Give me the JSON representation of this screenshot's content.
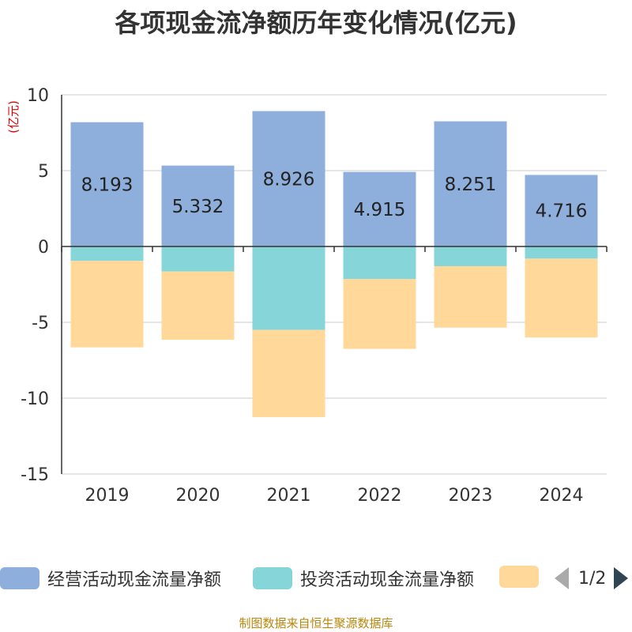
{
  "title": "各项现金流净额历年变化情况(亿元)",
  "source": "制图数据来自恒生聚源数据库",
  "chart_data": {
    "type": "bar",
    "stacked": true,
    "title": "各项现金流净额历年变化情况(亿元)",
    "ylabel": "(亿元)",
    "xlabel": "",
    "ylim": [
      -15,
      10
    ],
    "yticks": [
      10,
      5,
      0,
      -5,
      -10,
      -15
    ],
    "grid": true,
    "categories": [
      "2019",
      "2020",
      "2021",
      "2022",
      "2023",
      "2024"
    ],
    "series": [
      {
        "name": "经营活动现金流量净额",
        "color": "#8eaedb",
        "values": [
          8.193,
          5.332,
          8.926,
          4.915,
          8.251,
          4.716
        ],
        "labels": [
          "8.193",
          "5.332",
          "8.926",
          "4.915",
          "8.251",
          "4.716"
        ]
      },
      {
        "name": "投资活动现金流量净额",
        "color": "#86d5d8",
        "values": [
          -0.95,
          -1.65,
          -5.5,
          -2.15,
          -1.3,
          -0.8
        ]
      },
      {
        "name": "",
        "color": "#ffd89a",
        "values": [
          -5.7,
          -4.5,
          -5.75,
          -4.6,
          -4.05,
          -5.2
        ]
      }
    ]
  },
  "legend": {
    "items": [
      "经营活动现金流量净额",
      "投资活动现金流量净额",
      ""
    ],
    "page": "1/2"
  }
}
